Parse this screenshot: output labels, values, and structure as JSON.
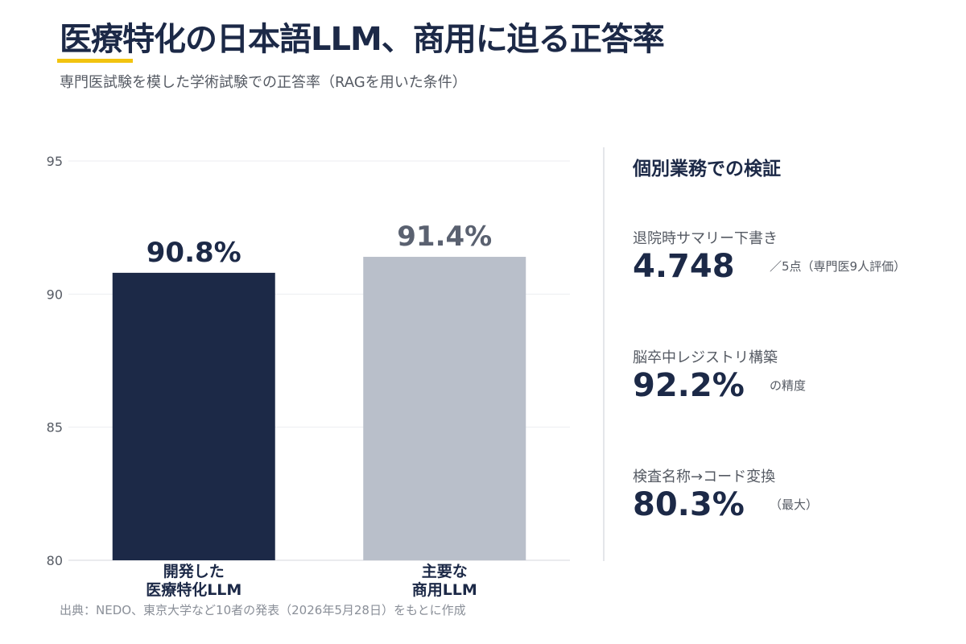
{
  "header": {
    "title": "医療特化の日本語LLM、商用に迫る正答率",
    "subtitle": "専門医試験を模した学術試験での正答率（RAGを用いた条件）"
  },
  "colors": {
    "accent_yellow": "#f2c40f",
    "navy": "#1c2947",
    "gray_bar": "#b9bfca",
    "gray_label": "#5a6170"
  },
  "chart_data": {
    "type": "bar",
    "categories": [
      "開発した\n医療特化LLM",
      "主要な\n商用LLM"
    ],
    "values": [
      90.8,
      91.4
    ],
    "data_labels": [
      "90.8%",
      "91.4%"
    ],
    "bar_colors": [
      "#1c2947",
      "#b9bfca"
    ],
    "data_label_colors": [
      "#1c2947",
      "#5a6170"
    ],
    "title": "",
    "xlabel": "",
    "ylabel": "",
    "ylim": [
      80,
      95
    ],
    "yticks": [
      80,
      85,
      90,
      95
    ],
    "grid": true
  },
  "side_panel": {
    "title": "個別業務での検証",
    "metrics": [
      {
        "label": "退院時サマリー下書き",
        "value": "4.748",
        "note": "／5点（専門医9人評価）"
      },
      {
        "label": "脳卒中レジストリ構築",
        "value": "92.2%",
        "note": "の精度"
      },
      {
        "label": "検査名称→コード変換",
        "value": "80.3%",
        "note": "（最大）"
      }
    ]
  },
  "footer": {
    "source": "出典：NEDO、東京大学など10者の発表（2026年5月28日）をもとに作成"
  }
}
